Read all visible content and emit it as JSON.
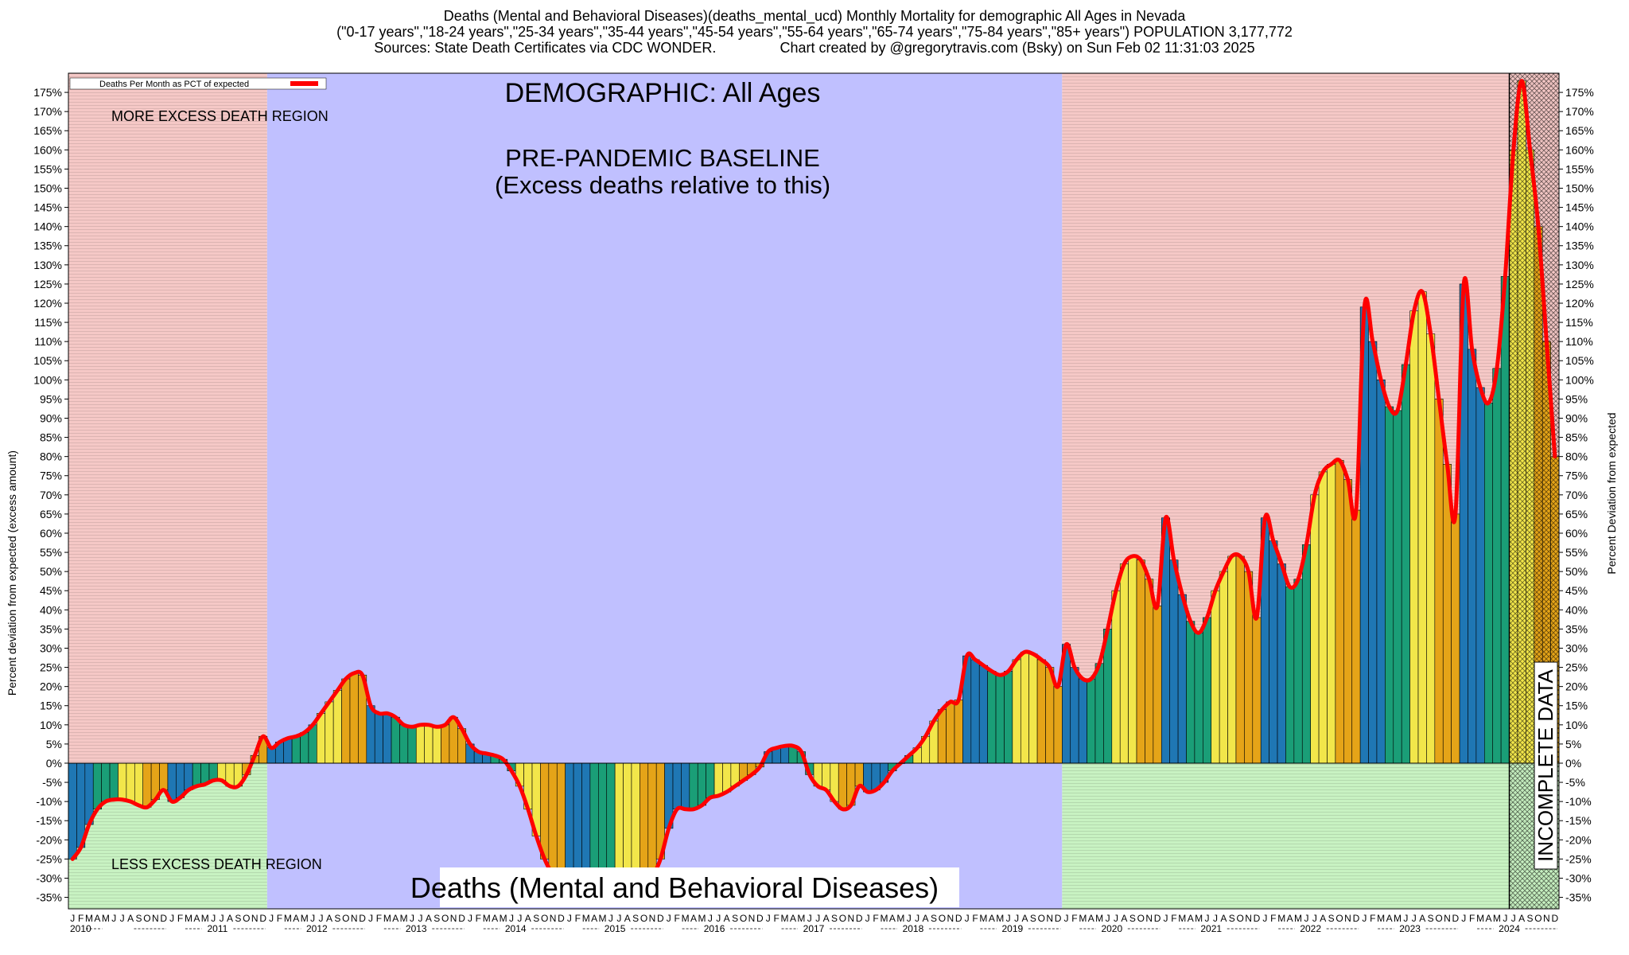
{
  "header": {
    "line1": "Deaths (Mental and Behavioral Diseases)(deaths_mental_ucd) Monthly Mortality for demographic All Ages in Nevada",
    "line2": "(\"0-17 years\",\"18-24 years\",\"25-34 years\",\"35-44 years\",\"45-54 years\",\"55-64 years\",\"65-74 years\",\"75-84 years\",\"85+ years\") POPULATION 3,177,772",
    "line3": "Sources: State Death Certificates via CDC WONDER.                Chart created by @gregorytravis.com (Bsky) on Sun Feb 02 11:31:03 2025"
  },
  "annotations": {
    "demographic": "DEMOGRAPHIC: All Ages",
    "baseline_line1": "PRE-PANDEMIC BASELINE",
    "baseline_line2": "(Excess deaths relative to this)",
    "more_excess": "MORE EXCESS DEATH REGION",
    "less_excess": "LESS EXCESS DEATH REGION",
    "bottom_title": "Deaths (Mental and Behavioral Diseases)",
    "incomplete": "INCOMPLETE DATA"
  },
  "colors": {
    "excess_region": "#f5c8c6",
    "less_region": "#c8f2c2",
    "baseline_region": "#c0c0ff",
    "line": "#ff0000",
    "bar_palette": [
      "#1f77b4",
      "#1a9e77",
      "#f2e64a",
      "#e5a418"
    ]
  },
  "chart_data": {
    "type": "bar",
    "title": "Deaths (Mental and Behavioral Diseases)",
    "ylabel": "Percent deviation from expected (excess amount)",
    "ylabel_right": "Percent Deviation from expected",
    "legend": {
      "label": "Deaths Per Month as PCT of expected",
      "position": "top-left"
    },
    "ylim": [
      -38,
      180
    ],
    "yticks": [
      -35,
      -30,
      -25,
      -20,
      -15,
      -10,
      -5,
      0,
      5,
      10,
      15,
      20,
      25,
      30,
      35,
      40,
      45,
      50,
      55,
      60,
      65,
      70,
      75,
      80,
      85,
      90,
      95,
      100,
      105,
      110,
      115,
      120,
      125,
      130,
      135,
      140,
      145,
      150,
      155,
      160,
      165,
      170,
      175
    ],
    "month_letters": [
      "J",
      "F",
      "M",
      "A",
      "M",
      "J",
      "J",
      "A",
      "S",
      "O",
      "N",
      "D"
    ],
    "years": [
      "2010",
      "2011",
      "2012",
      "2013",
      "2014",
      "2015",
      "2016",
      "2017",
      "2018",
      "2019",
      "2020",
      "2021",
      "2022",
      "2023",
      "2024"
    ],
    "regions": [
      {
        "name": "excess-region",
        "from": "2010-01",
        "to": "2011-12",
        "type": "more-less"
      },
      {
        "name": "baseline-region",
        "from": "2012-01",
        "to": "2019-12",
        "type": "baseline"
      },
      {
        "name": "excess-region",
        "from": "2020-01",
        "to": "2024-12",
        "type": "more-less"
      }
    ],
    "incomplete_from": "2024-07",
    "start": "2010-01",
    "values": [
      -25,
      -22,
      -16,
      -12,
      -10,
      -9.5,
      -9.5,
      -10,
      -11,
      -11.5,
      -9.5,
      -7,
      -10,
      -9,
      -7,
      -6,
      -5.5,
      -4.5,
      -4.5,
      -6,
      -6,
      -3,
      2,
      7,
      4,
      5.5,
      6.5,
      7,
      8,
      10,
      13,
      16,
      19,
      22,
      23.5,
      23,
      15,
      13,
      13,
      12,
      10,
      9.5,
      10,
      10,
      9.5,
      10,
      12,
      9,
      5,
      3,
      2.5,
      2,
      1,
      -2,
      -6,
      -12,
      -19,
      -25,
      -29,
      -30,
      -30,
      -31,
      -32,
      -33,
      -34,
      -35,
      -35,
      -34,
      -33,
      -35,
      -30,
      -25,
      -17,
      -12,
      -12,
      -12,
      -11,
      -9,
      -8.5,
      -7.5,
      -6,
      -4.5,
      -3,
      -1,
      3,
      4,
      4.5,
      4.5,
      3,
      -3,
      -6,
      -7,
      -10,
      -12,
      -11,
      -6,
      -7.5,
      -7,
      -5,
      -2,
      0,
      2,
      4,
      7,
      11,
      14,
      16,
      16.5,
      28,
      27,
      25.5,
      24,
      23,
      24,
      27,
      29,
      28.5,
      27,
      25,
      20,
      31,
      25,
      22,
      22,
      26,
      35,
      45,
      52,
      54,
      53,
      48,
      41,
      64,
      53,
      44,
      37,
      34,
      38,
      45,
      50,
      54,
      54,
      50,
      38,
      64,
      58,
      52,
      46,
      48,
      57,
      70,
      76,
      78,
      79,
      74,
      66,
      119,
      110,
      100,
      93,
      92,
      104,
      118,
      123,
      112,
      95,
      78,
      65,
      125,
      108,
      98,
      94,
      103,
      127,
      160,
      178,
      160,
      140,
      110,
      80
    ]
  }
}
